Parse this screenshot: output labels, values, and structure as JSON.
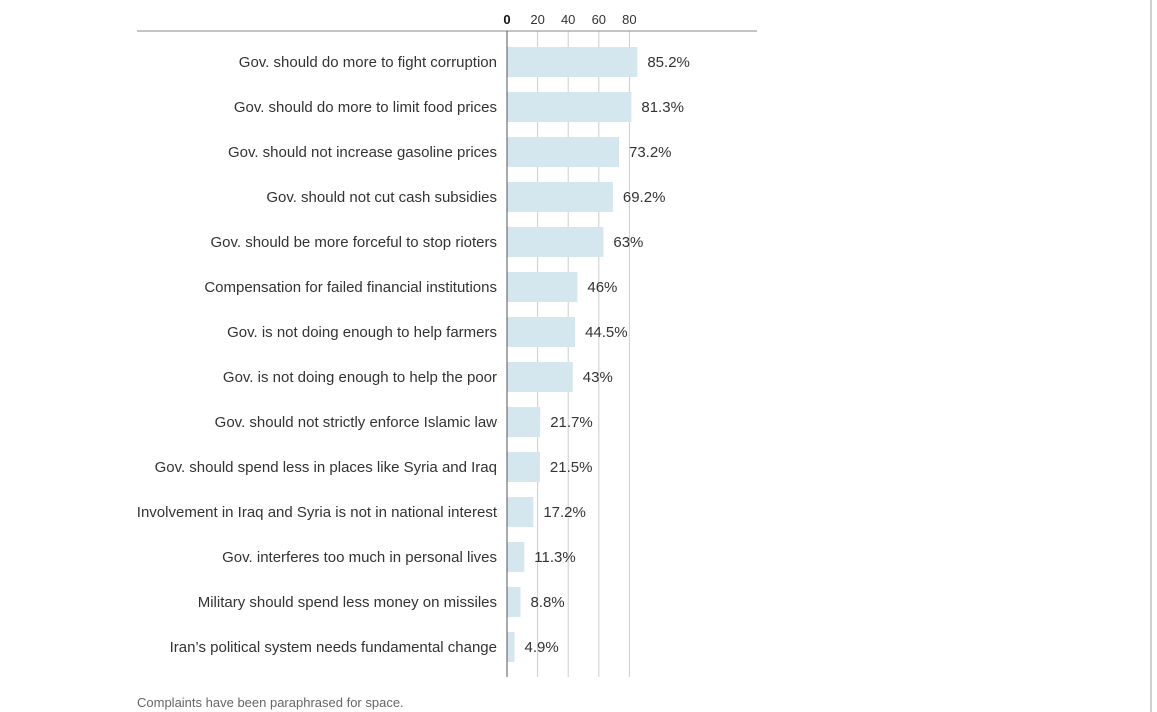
{
  "chart_data": {
    "type": "bar",
    "orientation": "horizontal",
    "categories": [
      "Gov. should do more to fight corruption",
      "Gov. should do more to limit food prices",
      "Gov. should not increase gasoline prices",
      "Gov. should not cut cash subsidies",
      "Gov. should be more forceful to stop rioters",
      "Compensation for failed financial institutions",
      "Gov. is not doing enough to help farmers",
      "Gov. is not doing enough to help the poor",
      "Gov. should not strictly enforce Islamic law",
      "Gov. should spend less in places like Syria and Iraq",
      "Involvement in Iraq and Syria is not in national interest",
      "Gov. interferes too much in personal lives",
      "Military should spend less money on missiles",
      "Iran’s political system needs fundamental change"
    ],
    "values": [
      85.2,
      81.3,
      73.2,
      69.2,
      63,
      46,
      44.5,
      43,
      21.7,
      21.5,
      17.2,
      11.3,
      8.8,
      4.9
    ],
    "value_labels": [
      "85.2%",
      "81.3%",
      "73.2%",
      "69.2%",
      "63%",
      "46%",
      "44.5%",
      "43%",
      "21.7%",
      "21.5%",
      "17.2%",
      "11.3%",
      "8.8%",
      "4.9%"
    ],
    "x_ticks": [
      0,
      20,
      40,
      60,
      80
    ],
    "x_tick_labels": [
      "0",
      "20",
      "40",
      "60",
      "80"
    ],
    "xlim": [
      0,
      100
    ],
    "grid": true,
    "bar_color": "#d4e6ee",
    "gridline_color": "#cccccc",
    "footnote": "Complaints have been paraphrased for space."
  }
}
